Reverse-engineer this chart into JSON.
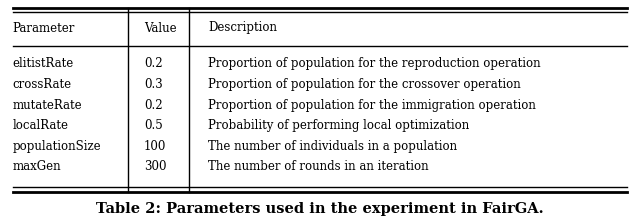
{
  "headers": [
    "Parameter",
    "Value",
    "Description"
  ],
  "rows": [
    [
      "elitistRate",
      "0.2",
      "Proportion of population for the reproduction operation"
    ],
    [
      "crossRate",
      "0.3",
      "Proportion of population for the crossover operation"
    ],
    [
      "mutateRate",
      "0.2",
      "Proportion of population for the immigration operation"
    ],
    [
      "localRate",
      "0.5",
      "Probability of performing local optimization"
    ],
    [
      "populationSize",
      "100",
      "The number of individuals in a population"
    ],
    [
      "maxGen",
      "300",
      "The number of rounds in an iteration"
    ]
  ],
  "caption": "Table 2: Parameters used in the experiment in FairGA.",
  "background_color": "#ffffff",
  "text_color": "#000000",
  "font_size": 8.5,
  "caption_font_size": 10.5
}
